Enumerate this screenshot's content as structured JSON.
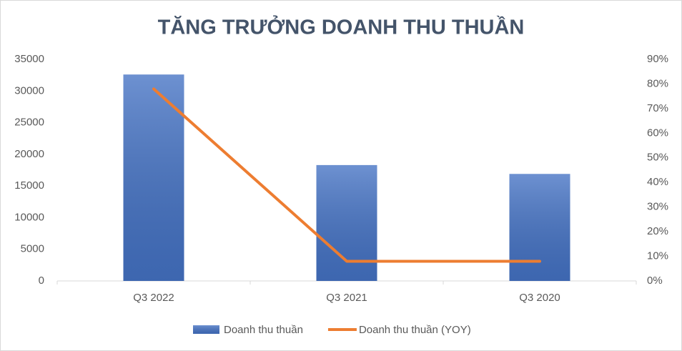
{
  "chart_data": {
    "type": "combo",
    "title": "TĂNG TRƯỞNG DOANH THU THUẦN",
    "categories": [
      "Q3 2022",
      "Q3 2021",
      "Q3 2020"
    ],
    "series": [
      {
        "name": "Doanh thu thuần",
        "type": "bar",
        "color": "#4472c4",
        "values": [
          32600,
          18300,
          16900
        ]
      },
      {
        "name": "Doanh thu thuần (YOY)",
        "type": "line",
        "color": "#ed7d31",
        "axis": "y2",
        "values": [
          78,
          8,
          8
        ]
      }
    ],
    "ylim": [
      0,
      35000
    ],
    "yticks": [
      0,
      5000,
      10000,
      15000,
      20000,
      25000,
      30000,
      35000
    ],
    "y2lim": [
      0,
      90
    ],
    "y2ticks": [
      {
        "value": 0,
        "label": "0%"
      },
      {
        "value": 10,
        "label": "10%"
      },
      {
        "value": 20,
        "label": "20%"
      },
      {
        "value": 30,
        "label": "30%"
      },
      {
        "value": 40,
        "label": "40%"
      },
      {
        "value": 50,
        "label": "50%"
      },
      {
        "value": 60,
        "label": "60%"
      },
      {
        "value": 70,
        "label": "70%"
      },
      {
        "value": 80,
        "label": "80%"
      },
      {
        "value": 90,
        "label": "90%"
      }
    ],
    "grid": false,
    "legend": "bottom"
  }
}
